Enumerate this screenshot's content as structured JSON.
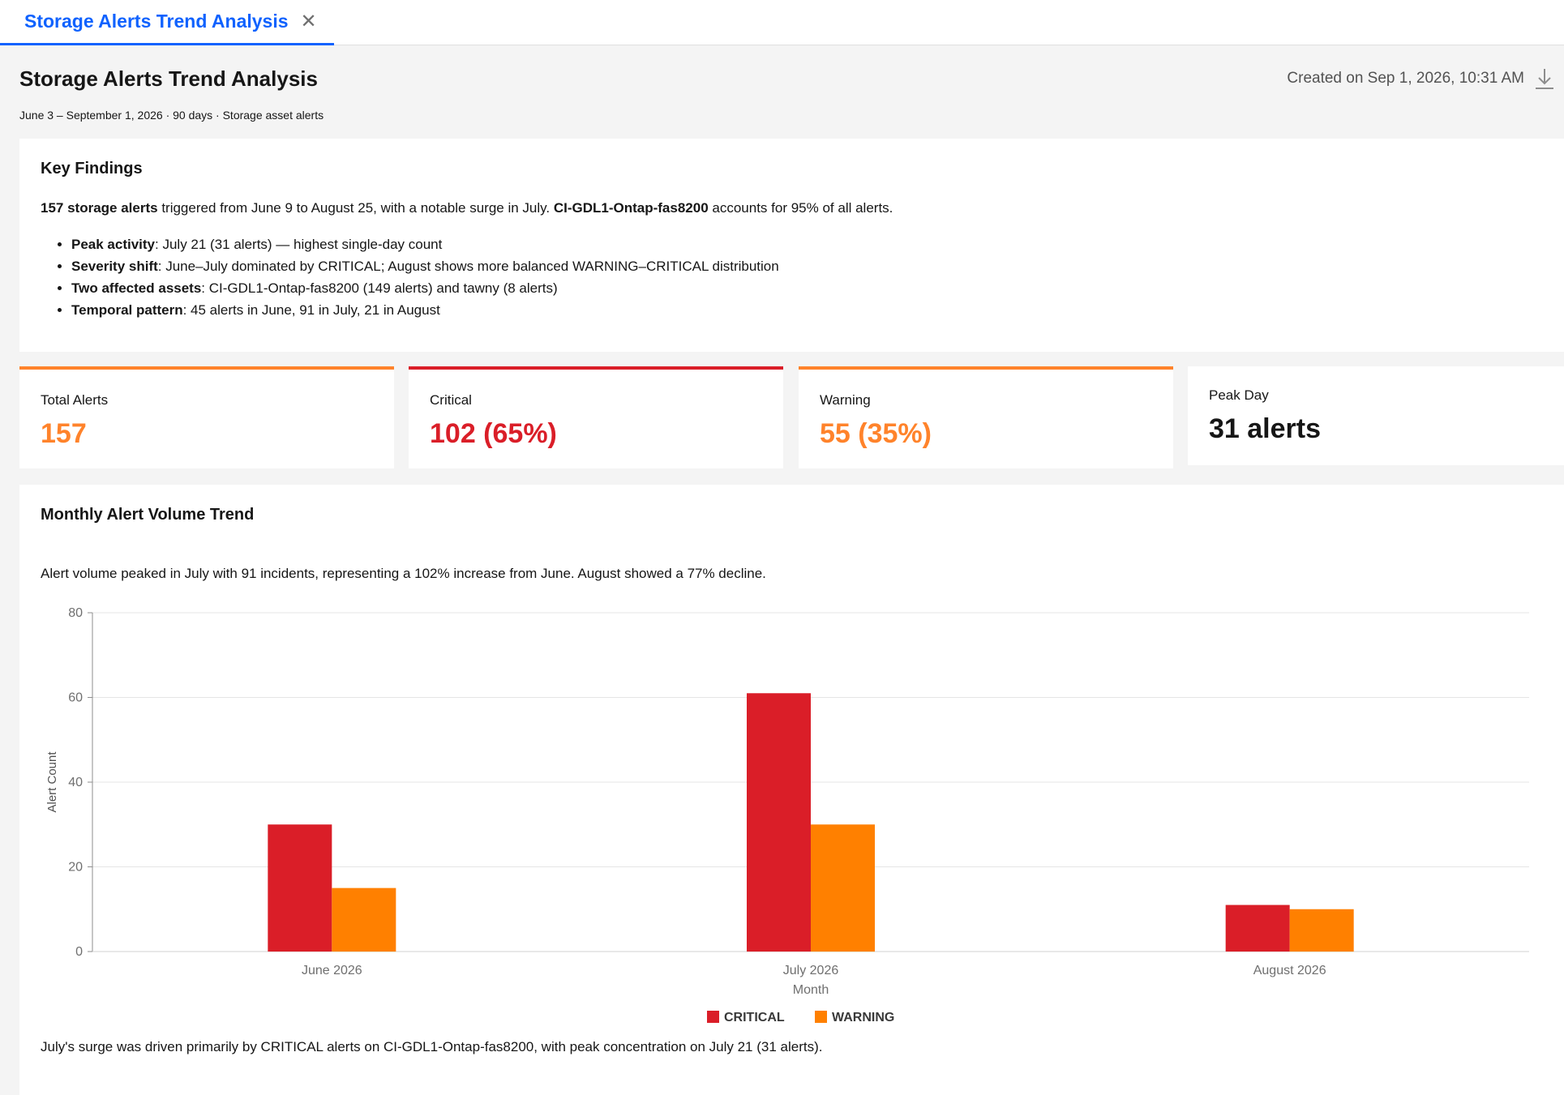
{
  "tab": {
    "label": "Storage Alerts Trend Analysis"
  },
  "header": {
    "title": "Storage Alerts Trend Analysis",
    "subtitle": "June 3 – September 1, 2026 · 90 days · Storage asset alerts",
    "created": "Created on Sep 1, 2026, 10:31 AM"
  },
  "findings": {
    "title": "Key Findings",
    "lead_bold1": "157 storage alerts",
    "lead_text1": " triggered from June 9 to August 25, with a notable surge in July. ",
    "lead_bold2": "CI-GDL1-Ontap-fas8200",
    "lead_text2": " accounts for 95% of all alerts.",
    "bullets": [
      {
        "bold": "Peak activity",
        "text": ": July 21 (31 alerts) — highest single-day count"
      },
      {
        "bold": "Severity shift",
        "text": ": June–July dominated by CRITICAL; August shows more balanced WARNING–CRITICAL distribution"
      },
      {
        "bold": "Two affected assets",
        "text": ": CI-GDL1-Ontap-fas8200 (149 alerts) and tawny (8 alerts)"
      },
      {
        "bold": "Temporal pattern",
        "text": ": 45 alerts in June, 91 in July, 21 in August"
      }
    ]
  },
  "kpis": [
    {
      "label": "Total Alerts",
      "value": "157",
      "color": "#ff832b"
    },
    {
      "label": "Critical",
      "value": "102 (65%)",
      "color": "#da1e28"
    },
    {
      "label": "Warning",
      "value": "55 (35%)",
      "color": "#ff832b"
    },
    {
      "label": "Peak Day",
      "value": "31 alerts",
      "color": "#161616"
    }
  ],
  "trend": {
    "title": "Monthly Alert Volume Trend",
    "description": "Alert volume peaked in July with 91 incidents, representing a 102% increase from June. August showed a 77% decline.",
    "footnote": "July's surge was driven primarily by CRITICAL alerts on CI-GDL1-Ontap-fas8200, with peak concentration on July 21 (31 alerts)."
  },
  "chart_data": {
    "type": "bar",
    "categories": [
      "June 2026",
      "July 2026",
      "August 2026"
    ],
    "series": [
      {
        "name": "CRITICAL",
        "values": [
          30,
          61,
          11
        ],
        "color": "#da1e28"
      },
      {
        "name": "WARNING",
        "values": [
          15,
          30,
          10
        ],
        "color": "#ff8000"
      }
    ],
    "xlabel": "Month",
    "ylabel": "Alert Count",
    "ylim": [
      0,
      80
    ],
    "yticks": [
      0,
      20,
      40,
      60,
      80
    ],
    "grid": true,
    "legend": "bottom-center"
  }
}
